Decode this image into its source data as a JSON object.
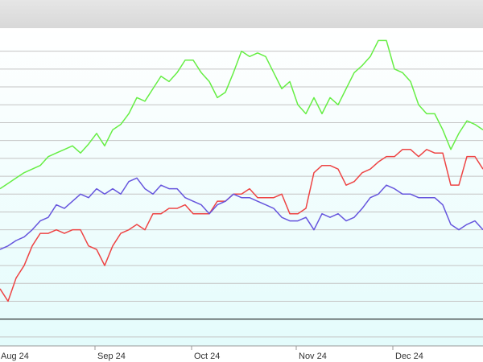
{
  "chart_data": {
    "type": "line",
    "categories": [
      "Aug 24",
      null,
      null,
      null,
      null,
      null,
      null,
      null,
      null,
      null,
      null,
      null,
      "Sep 24",
      null,
      null,
      null,
      null,
      null,
      null,
      null,
      null,
      null,
      null,
      null,
      "Oct 24",
      null,
      null,
      null,
      null,
      null,
      null,
      null,
      null,
      null,
      null,
      null,
      null,
      "Nov 24",
      null,
      null,
      null,
      null,
      null,
      null,
      null,
      null,
      null,
      null,
      null,
      "Dec 24",
      null,
      null,
      null,
      null,
      null,
      null,
      null,
      null,
      null,
      null,
      null
    ],
    "series": [
      {
        "color": "#66ee44",
        "values": [
          7.3,
          7.6,
          7.9,
          8.2,
          8.4,
          8.6,
          9.1,
          9.3,
          9.5,
          9.7,
          9.3,
          9.8,
          10.4,
          9.7,
          10.6,
          10.9,
          11.5,
          12.4,
          12.2,
          12.9,
          13.6,
          13.3,
          13.8,
          14.5,
          14.5,
          13.8,
          13.3,
          12.4,
          12.7,
          13.8,
          15.0,
          14.7,
          14.9,
          14.7,
          13.8,
          12.9,
          13.3,
          12.0,
          11.5,
          12.4,
          11.5,
          12.4,
          12.0,
          12.9,
          13.8,
          14.2,
          14.7,
          15.6,
          15.6,
          14.0,
          13.8,
          13.3,
          12.0,
          11.5,
          11.5,
          10.6,
          9.5,
          10.4,
          11.1,
          10.9,
          10.6
        ]
      },
      {
        "color": "#ee4444",
        "values": [
          1.7,
          1.0,
          2.3,
          3.0,
          4.1,
          4.8,
          4.8,
          5.0,
          4.8,
          5.0,
          5.0,
          4.1,
          3.9,
          3.0,
          4.1,
          4.8,
          5.0,
          5.3,
          5.0,
          5.9,
          5.9,
          6.2,
          6.2,
          6.4,
          5.9,
          5.9,
          5.9,
          6.6,
          6.6,
          7.0,
          7.0,
          7.3,
          6.8,
          6.8,
          6.8,
          7.0,
          5.9,
          5.9,
          6.2,
          8.2,
          8.6,
          8.6,
          8.4,
          7.5,
          7.7,
          8.2,
          8.4,
          8.8,
          9.1,
          9.1,
          9.5,
          9.5,
          9.1,
          9.5,
          9.3,
          9.3,
          7.5,
          7.5,
          9.1,
          9.1,
          8.4
        ]
      },
      {
        "color": "#6655dd",
        "values": [
          3.9,
          4.1,
          4.4,
          4.6,
          5.0,
          5.5,
          5.7,
          6.4,
          6.2,
          6.6,
          7.0,
          6.8,
          7.3,
          7.0,
          7.3,
          7.0,
          7.7,
          7.9,
          7.3,
          7.0,
          7.5,
          7.3,
          7.3,
          6.8,
          6.6,
          6.4,
          5.9,
          6.4,
          6.6,
          7.0,
          6.8,
          6.8,
          6.6,
          6.4,
          6.2,
          5.7,
          5.5,
          5.5,
          5.7,
          5.0,
          5.9,
          5.7,
          5.9,
          5.5,
          5.7,
          6.2,
          6.8,
          7.0,
          7.5,
          7.3,
          7.0,
          7.0,
          6.8,
          6.8,
          6.8,
          6.4,
          5.3,
          5.0,
          5.3,
          5.5,
          5.0
        ]
      }
    ],
    "ylim": [
      -1.5,
      16.2
    ],
    "yticks": [
      -1,
      0,
      1,
      2,
      3,
      4,
      5,
      6,
      7,
      8,
      9,
      10,
      11,
      12,
      13,
      14,
      15
    ],
    "grid": true
  }
}
